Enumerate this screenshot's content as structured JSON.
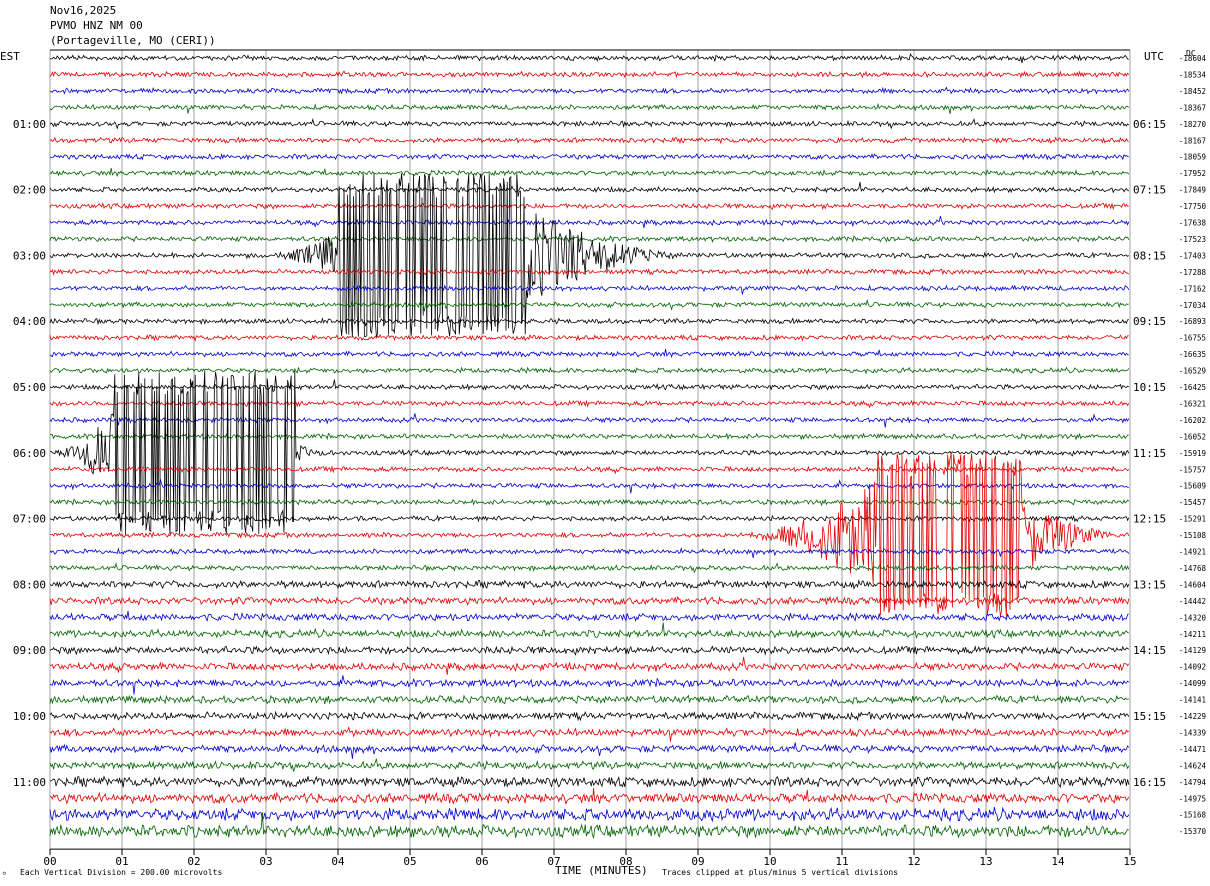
{
  "header": {
    "date": "Nov16,2025",
    "station": "PVMO HNZ NM 00",
    "location": "(Portageville, MO (CERI))"
  },
  "chart_data": {
    "type": "line",
    "left_timezone": "EST",
    "right_timezone": "UTC",
    "dc_label": "DC",
    "xlabel": "TIME (MINUTES)",
    "x_ticks": [
      "00",
      "01",
      "02",
      "03",
      "04",
      "05",
      "06",
      "07",
      "08",
      "09",
      "10",
      "11",
      "12",
      "13",
      "14",
      "15"
    ],
    "xlim": [
      0,
      15
    ],
    "trace_minutes": 15,
    "trace_colors": [
      "#000000",
      "#e00000",
      "#0000d0",
      "#006400"
    ],
    "left_hour_labels": [
      {
        "trace": 4,
        "label": "01:00"
      },
      {
        "trace": 8,
        "label": "02:00"
      },
      {
        "trace": 12,
        "label": "03:00"
      },
      {
        "trace": 16,
        "label": "04:00"
      },
      {
        "trace": 20,
        "label": "05:00"
      },
      {
        "trace": 24,
        "label": "06:00"
      },
      {
        "trace": 28,
        "label": "07:00"
      },
      {
        "trace": 32,
        "label": "08:00"
      },
      {
        "trace": 36,
        "label": "09:00"
      },
      {
        "trace": 40,
        "label": "10:00"
      },
      {
        "trace": 44,
        "label": "11:00"
      }
    ],
    "right_hour_labels": [
      {
        "trace": 4,
        "label": "06:15"
      },
      {
        "trace": 8,
        "label": "07:15"
      },
      {
        "trace": 12,
        "label": "08:15"
      },
      {
        "trace": 16,
        "label": "09:15"
      },
      {
        "trace": 20,
        "label": "10:15"
      },
      {
        "trace": 24,
        "label": "11:15"
      },
      {
        "trace": 28,
        "label": "12:15"
      },
      {
        "trace": 32,
        "label": "13:15"
      },
      {
        "trace": 36,
        "label": "14:15"
      },
      {
        "trace": 40,
        "label": "15:15"
      },
      {
        "trace": 44,
        "label": "16:15"
      }
    ],
    "dc_offsets": [
      "-18604",
      "-18534",
      "-18452",
      "-18367",
      "-18270",
      "-18167",
      "-18059",
      "-17952",
      "-17849",
      "-17750",
      "-17638",
      "-17523",
      "-17403",
      "-17288",
      "-17162",
      "-17034",
      "-16893",
      "-16755",
      "-16635",
      "-16529",
      "-16425",
      "-16321",
      "-16202",
      "-16052",
      "-15919",
      "-15757",
      "-15609",
      "-15457",
      "-15291",
      "-15108",
      "-14921",
      "-14768",
      "-14604",
      "-14442",
      "-14320",
      "-14211",
      "-14129",
      "-14092",
      "-14099",
      "-14141",
      "-14229",
      "-14339",
      "-14471",
      "-14624",
      "-14794",
      "-14975",
      "-15168",
      "-15370"
    ],
    "noise_levels": [
      2,
      2,
      2,
      2,
      2,
      2,
      2,
      2,
      2,
      2,
      2,
      2,
      2,
      2,
      2,
      2,
      2,
      2,
      2,
      2,
      2,
      2,
      2,
      2,
      2,
      2,
      2,
      2,
      2,
      2,
      2,
      2,
      3,
      3,
      3,
      3,
      3,
      3,
      3,
      3,
      3,
      3,
      3,
      3,
      4,
      4,
      5,
      5
    ],
    "events": [
      {
        "trace": 12,
        "start_min": 3.0,
        "peak_min": 5.2,
        "end_min": 9.0,
        "clipped_from_min": 4.0,
        "clipped_to_min": 6.6
      },
      {
        "trace": 24,
        "start_min": 0.0,
        "peak_min": 1.5,
        "end_min": 4.0,
        "clipped_from_min": 0.9,
        "clipped_to_min": 3.4
      },
      {
        "trace": 29,
        "start_min": 9.5,
        "peak_min": 12.3,
        "end_min": 15.0,
        "clipped_from_min": 11.5,
        "clipped_to_min": 13.5
      }
    ],
    "footer_left": "Each Vertical Division =  200.00 microvolts",
    "footer_right": "Traces clipped at plus/minus 5 vertical divisions"
  }
}
